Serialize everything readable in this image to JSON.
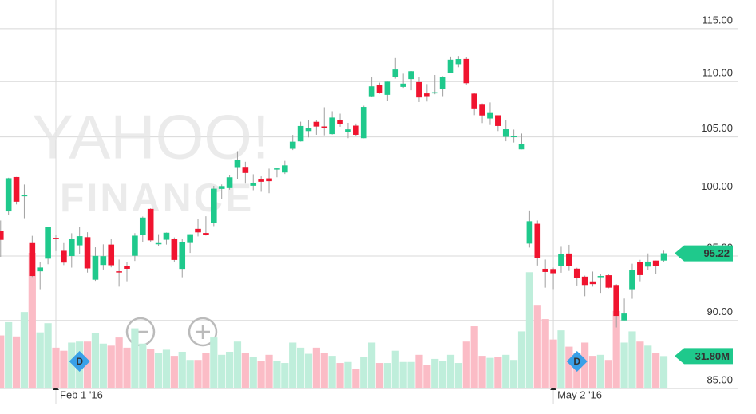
{
  "chart_data": {
    "type": "candlestick",
    "watermark": [
      "YAHOO!",
      "FINANCE"
    ],
    "categories": [
      null,
      null,
      null,
      null,
      null,
      null,
      null,
      "Feb 1 '16",
      null,
      null,
      null,
      null,
      null,
      null,
      null,
      null,
      null,
      null,
      null,
      null,
      null,
      null,
      null,
      null,
      null,
      null,
      null,
      null,
      null,
      null,
      null,
      null,
      null,
      null,
      null,
      null,
      null,
      null,
      null,
      null,
      null,
      null,
      null,
      null,
      null,
      null,
      null,
      null,
      null,
      null,
      null,
      null,
      null,
      null,
      null,
      null,
      null,
      null,
      null,
      null,
      null,
      null,
      null,
      null,
      null,
      null,
      null,
      null,
      null,
      null,
      "May 2 '16",
      null,
      null,
      null,
      null,
      null,
      null,
      null,
      null,
      null,
      null,
      null,
      null,
      null,
      null
    ],
    "open": [
      97.06,
      98.63,
      101.52,
      99.93,
      96.04,
      93.79,
      94.79,
      96.47,
      95.42,
      95.0,
      95.86,
      96.52,
      93.13,
      94.29,
      95.92,
      93.79,
      94.19,
      95.02,
      96.67,
      98.84,
      96.0,
      96.31,
      96.4,
      93.98,
      96.05,
      97.2,
      96.86,
      97.65,
      100.51,
      100.58,
      102.37,
      102.39,
      100.78,
      101.31,
      101.41,
      102.24,
      101.91,
      103.96,
      104.61,
      105.52,
      106.34,
      105.93,
      105.25,
      106.48,
      105.47,
      106.0,
      104.89,
      108.65,
      109.72,
      108.78,
      110.42,
      109.51,
      110.23,
      109.95,
      108.91,
      108.97,
      109.34,
      110.8,
      111.62,
      112.11,
      108.89,
      107.88,
      106.64,
      106.93,
      105.01,
      105.0,
      103.91,
      96.0,
      97.61,
      93.99,
      93.97,
      94.2,
      95.2,
      94.0,
      93.37,
      93.0,
      93.33,
      93.48,
      92.72,
      90.0,
      92.39,
      94.55,
      94.16,
      94.64,
      94.64
    ],
    "high": [
      97.88,
      101.46,
      101.53,
      100.88,
      96.63,
      94.52,
      97.34,
      96.71,
      96.04,
      96.84,
      97.33,
      96.92,
      95.7,
      95.94,
      96.35,
      94.72,
      94.5,
      96.85,
      98.21,
      98.89,
      96.76,
      96.9,
      96.5,
      96.38,
      96.76,
      98.02,
      98.23,
      100.77,
      100.89,
      101.71,
      103.75,
      102.83,
      101.76,
      101.58,
      102.24,
      102.28,
      102.91,
      105.18,
      106.35,
      106.47,
      106.5,
      107.65,
      107.29,
      107.07,
      106.25,
      106.19,
      107.79,
      110.42,
      109.9,
      110.0,
      112.19,
      110.73,
      110.98,
      110.42,
      109.77,
      110.61,
      110.5,
      112.34,
      112.39,
      112.3,
      108.95,
      108.0,
      108.09,
      106.93,
      106.48,
      105.65,
      105.3,
      98.71,
      97.88,
      94.72,
      94.08,
      95.74,
      95.9,
      94.07,
      93.45,
      93.77,
      93.57,
      93.57,
      92.78,
      91.67,
      94.39,
      94.7,
      95.21,
      94.64,
      95.43
    ],
    "low": [
      94.94,
      98.37,
      99.21,
      98.07,
      93.34,
      92.39,
      94.35,
      95.4,
      94.28,
      94.08,
      95.19,
      93.69,
      93.04,
      93.93,
      94.1,
      92.59,
      93.01,
      94.61,
      96.15,
      96.09,
      95.8,
      95.92,
      94.55,
      93.32,
      95.25,
      96.58,
      96.65,
      97.42,
      99.64,
      100.45,
      101.37,
      100.96,
      100.4,
      100.27,
      100.15,
      101.5,
      101.78,
      103.85,
      104.59,
      104.96,
      105.19,
      105.14,
      105.21,
      105.9,
      104.89,
      105.06,
      104.88,
      108.6,
      108.88,
      108.2,
      110.27,
      109.42,
      109.2,
      108.12,
      108.17,
      108.83,
      108.66,
      110.8,
      111.33,
      109.73,
      106.94,
      106.23,
      106.06,
      105.52,
      104.62,
      104.51,
      103.91,
      95.68,
      94.25,
      92.51,
      92.4,
      93.68,
      93.82,
      92.68,
      91.85,
      92.59,
      92.11,
      92.46,
      89.47,
      90.0,
      91.65,
      93.01,
      93.89,
      93.57,
      94.52
    ],
    "close": [
      96.3,
      101.42,
      99.44,
      99.99,
      93.42,
      94.09,
      97.34,
      96.43,
      94.48,
      96.35,
      96.6,
      94.02,
      95.01,
      94.99,
      94.27,
      93.7,
      93.99,
      96.64,
      98.12,
      96.26,
      96.04,
      96.88,
      94.69,
      96.1,
      96.76,
      96.91,
      96.69,
      100.53,
      100.75,
      101.5,
      103.01,
      101.87,
      101.03,
      101.12,
      101.17,
      102.26,
      102.52,
      104.58,
      105.97,
      105.8,
      105.92,
      105.91,
      106.72,
      106.13,
      105.67,
      105.19,
      107.68,
      109.56,
      108.99,
      109.99,
      111.12,
      109.81,
      110.96,
      108.54,
      108.66,
      109.02,
      110.44,
      112.04,
      112.1,
      109.85,
      107.48,
      106.91,
      107.13,
      105.97,
      105.68,
      105.08,
      104.35,
      97.82,
      94.83,
      93.74,
      93.64,
      95.18,
      94.19,
      93.24,
      92.72,
      92.79,
      93.42,
      92.51,
      90.34,
      90.52,
      93.88,
      93.49,
      94.56,
      94.2,
      95.22
    ],
    "volume": [
      52,
      65,
      51,
      75,
      133,
      55,
      64,
      40,
      37,
      45,
      46,
      46,
      54,
      44,
      42,
      50,
      40,
      59,
      44,
      39,
      35,
      38,
      32,
      36,
      28,
      28,
      35,
      50,
      33,
      36,
      46,
      35,
      31,
      27,
      33,
      27,
      25,
      45,
      40,
      34,
      40,
      35,
      32,
      25,
      26,
      19,
      31,
      45,
      25,
      25,
      37,
      26,
      26,
      33,
      23,
      29,
      27,
      33,
      25,
      46,
      61,
      32,
      30,
      31,
      33,
      28,
      56,
      114,
      82,
      68,
      48,
      57,
      41,
      35,
      45,
      32,
      33,
      28,
      76,
      45,
      56,
      46,
      42,
      35,
      31.8
    ],
    "last_volume_label": "31.80M",
    "dividend_markers": [
      "D",
      "D"
    ],
    "log_scale": true,
    "ylim": [
      85,
      117.8
    ],
    "yticks": [
      {
        "value": 85,
        "label": "85.00"
      },
      {
        "value": 90,
        "label": "90.00"
      },
      {
        "value": 95,
        "label": "95.00"
      },
      {
        "value": 100,
        "label": "100.00"
      },
      {
        "value": 105,
        "label": "105.00"
      },
      {
        "value": 110,
        "label": "110.00"
      },
      {
        "value": 115,
        "label": "115.00"
      }
    ],
    "up_color": "#1fc98c",
    "down_color": "#f0142f",
    "up_volume_color": "#bfeedb",
    "down_volume_color": "#fbbcc6",
    "grid": true
  }
}
